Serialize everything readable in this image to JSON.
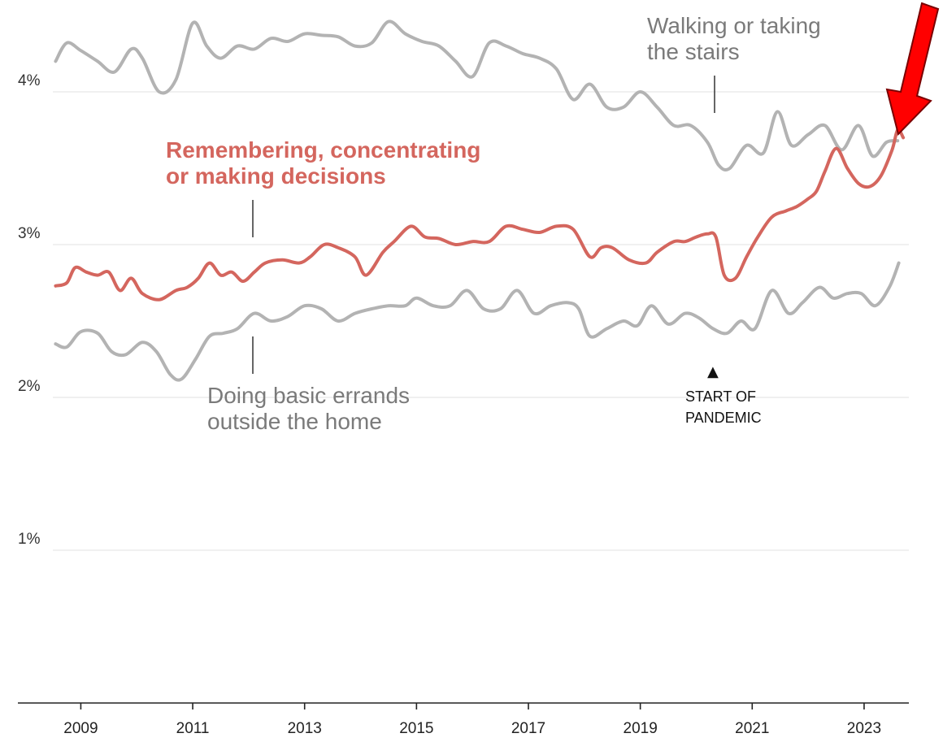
{
  "chart_data": {
    "type": "line",
    "xlim": [
      2008.5,
      2023.8
    ],
    "ylim": [
      0,
      4.5
    ],
    "y_ticks": [
      {
        "value": 1,
        "label": "1%"
      },
      {
        "value": 2,
        "label": "2%"
      },
      {
        "value": 3,
        "label": "3%"
      },
      {
        "value": 4,
        "label": "4%"
      }
    ],
    "x_ticks": [
      2009,
      2011,
      2013,
      2015,
      2017,
      2019,
      2021,
      2023
    ],
    "grid": true,
    "series": [
      {
        "name": "Walking or taking the stairs",
        "color": "#b3b3b3",
        "x": [
          2008.55,
          2008.75,
          2009.0,
          2009.3,
          2009.6,
          2009.9,
          2010.1,
          2010.4,
          2010.7,
          2011.0,
          2011.25,
          2011.5,
          2011.8,
          2012.1,
          2012.4,
          2012.7,
          2013.0,
          2013.3,
          2013.6,
          2013.9,
          2014.2,
          2014.5,
          2014.8,
          2015.1,
          2015.4,
          2015.7,
          2016.0,
          2016.3,
          2016.6,
          2016.9,
          2017.2,
          2017.5,
          2017.8,
          2018.1,
          2018.4,
          2018.7,
          2019.0,
          2019.3,
          2019.6,
          2019.9,
          2020.2,
          2020.4,
          2020.6,
          2020.9,
          2021.2,
          2021.45,
          2021.7,
          2022.0,
          2022.3,
          2022.6,
          2022.9,
          2023.15,
          2023.4,
          2023.6
        ],
        "values": [
          4.2,
          4.32,
          4.27,
          4.2,
          4.13,
          4.28,
          4.22,
          4.0,
          4.08,
          4.45,
          4.3,
          4.22,
          4.3,
          4.28,
          4.35,
          4.33,
          4.38,
          4.37,
          4.36,
          4.3,
          4.32,
          4.46,
          4.38,
          4.33,
          4.3,
          4.2,
          4.1,
          4.32,
          4.3,
          4.25,
          4.22,
          4.15,
          3.95,
          4.05,
          3.9,
          3.9,
          4.0,
          3.9,
          3.78,
          3.78,
          3.67,
          3.52,
          3.5,
          3.65,
          3.6,
          3.87,
          3.65,
          3.72,
          3.78,
          3.62,
          3.78,
          3.58,
          3.67,
          3.68
        ]
      },
      {
        "name": "Remembering, concentrating or making decisions",
        "color": "#d4665e",
        "x": [
          2008.55,
          2008.75,
          2008.9,
          2009.1,
          2009.3,
          2009.5,
          2009.7,
          2009.9,
          2010.1,
          2010.4,
          2010.7,
          2010.9,
          2011.1,
          2011.3,
          2011.5,
          2011.7,
          2011.9,
          2012.1,
          2012.3,
          2012.6,
          2012.9,
          2013.1,
          2013.35,
          2013.6,
          2013.9,
          2014.1,
          2014.4,
          2014.6,
          2014.9,
          2015.15,
          2015.4,
          2015.7,
          2016.0,
          2016.3,
          2016.6,
          2016.9,
          2017.2,
          2017.5,
          2017.8,
          2018.1,
          2018.3,
          2018.5,
          2018.8,
          2019.1,
          2019.3,
          2019.6,
          2019.8,
          2020.0,
          2020.2,
          2020.35,
          2020.5,
          2020.7,
          2020.9,
          2021.1,
          2021.35,
          2021.6,
          2021.8,
          2022.0,
          2022.15,
          2022.3,
          2022.5,
          2022.7,
          2022.9,
          2023.1,
          2023.3,
          2023.5,
          2023.6,
          2023.7
        ],
        "values": [
          2.73,
          2.75,
          2.85,
          2.82,
          2.8,
          2.82,
          2.7,
          2.78,
          2.68,
          2.64,
          2.7,
          2.72,
          2.78,
          2.88,
          2.8,
          2.82,
          2.76,
          2.82,
          2.88,
          2.9,
          2.88,
          2.92,
          3.0,
          2.98,
          2.92,
          2.8,
          2.95,
          3.02,
          3.12,
          3.05,
          3.04,
          3.0,
          3.02,
          3.02,
          3.12,
          3.1,
          3.08,
          3.12,
          3.1,
          2.92,
          2.98,
          2.98,
          2.9,
          2.88,
          2.95,
          3.02,
          3.02,
          3.05,
          3.07,
          3.05,
          2.8,
          2.78,
          2.92,
          3.05,
          3.18,
          3.22,
          3.25,
          3.3,
          3.35,
          3.48,
          3.63,
          3.5,
          3.4,
          3.38,
          3.45,
          3.62,
          3.75,
          3.7
        ]
      },
      {
        "name": "Doing basic errands outside the home",
        "color": "#b3b3b3",
        "x": [
          2008.55,
          2008.75,
          2009.0,
          2009.3,
          2009.55,
          2009.8,
          2010.1,
          2010.35,
          2010.6,
          2010.8,
          2011.05,
          2011.3,
          2011.55,
          2011.8,
          2012.1,
          2012.4,
          2012.7,
          2013.0,
          2013.3,
          2013.6,
          2013.9,
          2014.2,
          2014.5,
          2014.8,
          2015.0,
          2015.3,
          2015.6,
          2015.9,
          2016.2,
          2016.5,
          2016.8,
          2017.1,
          2017.4,
          2017.7,
          2017.9,
          2018.1,
          2018.4,
          2018.7,
          2018.95,
          2019.2,
          2019.5,
          2019.8,
          2020.05,
          2020.3,
          2020.55,
          2020.8,
          2021.05,
          2021.35,
          2021.65,
          2021.9,
          2022.2,
          2022.45,
          2022.7,
          2022.95,
          2023.2,
          2023.45,
          2023.62
        ],
        "values": [
          2.35,
          2.33,
          2.43,
          2.42,
          2.3,
          2.28,
          2.36,
          2.3,
          2.15,
          2.12,
          2.25,
          2.4,
          2.42,
          2.45,
          2.55,
          2.5,
          2.53,
          2.6,
          2.58,
          2.5,
          2.55,
          2.58,
          2.6,
          2.6,
          2.65,
          2.6,
          2.6,
          2.7,
          2.58,
          2.58,
          2.7,
          2.55,
          2.6,
          2.62,
          2.58,
          2.4,
          2.45,
          2.5,
          2.47,
          2.6,
          2.48,
          2.55,
          2.52,
          2.45,
          2.42,
          2.5,
          2.45,
          2.7,
          2.55,
          2.62,
          2.72,
          2.65,
          2.68,
          2.68,
          2.6,
          2.72,
          2.88
        ]
      }
    ]
  },
  "annotations": {
    "walking_line1": "Walking or taking",
    "walking_line2": "the stairs",
    "remembering_line1": "Remembering, concentrating",
    "remembering_line2": "or making decisions",
    "errands_line1": "Doing basic errands",
    "errands_line2": "outside the home",
    "pandemic_line1": "START OF",
    "pandemic_line2": "PANDEMIC",
    "pandemic_marker": "▲"
  },
  "colors": {
    "highlight": "#d4665e",
    "gray_series": "#b3b3b3",
    "arrow": "#ff0000"
  }
}
